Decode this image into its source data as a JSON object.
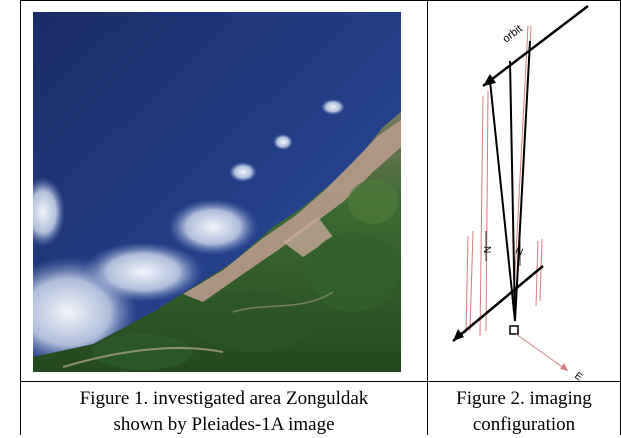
{
  "figure1": {
    "caption_line1": "Figure 1. investigated area Zonguldak",
    "caption_line2": "shown by Pleiades-1A image"
  },
  "figure2": {
    "caption_line1": "Figure 2. imaging",
    "caption_line2": "configuration",
    "labels": {
      "orbit": "orbit",
      "north1": "N",
      "north2": "N",
      "east": "E"
    }
  },
  "colors": {
    "sea_deep": "#1c2f6b",
    "sea_light": "#3a5ba8",
    "cloud": "#eef2f8",
    "urban": "#b89a8c",
    "forest": "#2f5a2a",
    "ray_pink": "#d08080"
  }
}
